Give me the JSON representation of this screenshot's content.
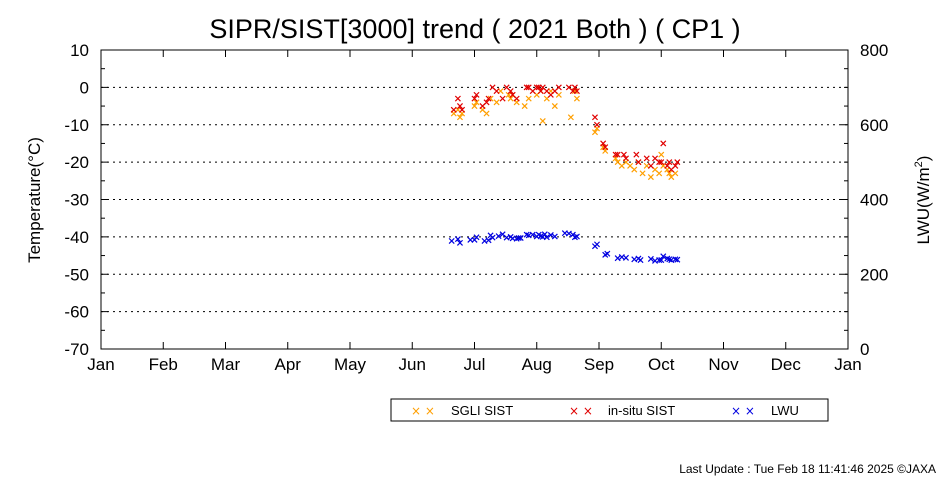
{
  "footer": "Last Update : Tue Feb 18 11:41:46 2025 ©JAXA",
  "chart_data": {
    "type": "scatter",
    "title": "SIPR/SIST[3000] trend ( 2021 Both ) ( CP1 )",
    "ylabel": "Temperature(°C)",
    "y2label_main": "LWU(W/m",
    "y2label_sup": "2",
    "y2label_end": ")",
    "xticks": [
      "Jan",
      "Feb",
      "Mar",
      "Apr",
      "May",
      "Jun",
      "Jul",
      "Aug",
      "Sep",
      "Oct",
      "Nov",
      "Dec",
      "Jan"
    ],
    "yticks": [
      "10",
      "0",
      "-10",
      "-20",
      "-30",
      "-40",
      "-50",
      "-60",
      "-70"
    ],
    "y2ticks": [
      "800",
      "600",
      "400",
      "200",
      "0"
    ],
    "ylim": [
      -70,
      10
    ],
    "y2lim": [
      0,
      800
    ],
    "xlim_months": [
      0,
      12
    ],
    "grid": "horizontal dotted",
    "legend_position": "bottom-right",
    "marker_glyph": "× ×",
    "colors": {
      "sgli": "#ff9f00",
      "insitu": "#e00000",
      "lwu": "#0000e0"
    },
    "series": [
      {
        "name": "SGLI SIST",
        "color": "#ff9f00",
        "axis": "left",
        "x": [
          "Jun 21",
          "Jun 23",
          "Jun 24",
          "Jun 25",
          "Jul 1",
          "Jul 2",
          "Jul 5",
          "Jul 7",
          "Jul 9",
          "Jul 12",
          "Jul 14",
          "Jul 18",
          "Jul 19",
          "Jul 20",
          "Jul 22",
          "Jul 26",
          "Jul 28",
          "Aug 1",
          "Aug 3",
          "Aug 4",
          "Aug 6",
          "Aug 8",
          "Aug 10",
          "Aug 12",
          "Aug 18",
          "Aug 20",
          "Aug 21",
          "Aug 30",
          "Aug 31",
          "Sep 3",
          "Sep 4",
          "Sep 9",
          "Sep 10",
          "Sep 12",
          "Sep 14",
          "Sep 16",
          "Sep 18",
          "Sep 20",
          "Sep 22",
          "Sep 24",
          "Sep 26",
          "Sep 28",
          "Sep 30",
          "Oct 1",
          "Oct 2",
          "Oct 4",
          "Oct 5",
          "Oct 6",
          "Oct 8"
        ],
        "y": [
          -7,
          -6,
          -8,
          -7,
          -5,
          -4,
          -6,
          -7,
          -3,
          -4,
          -1,
          -2,
          -3,
          -2,
          -4,
          -5,
          -3,
          -2,
          -1,
          -9,
          -3,
          -1,
          -5,
          -2,
          -8,
          -1,
          -3,
          -12,
          -11,
          -16,
          -17,
          -19,
          -20,
          -21,
          -20,
          -21,
          -22,
          -20,
          -23,
          -21,
          -24,
          -22,
          -23,
          -18,
          -21,
          -22,
          -23,
          -24,
          -23
        ]
      },
      {
        "name": "in-situ SIST",
        "color": "#e00000",
        "axis": "left",
        "x": [
          "Jun 21",
          "Jun 23",
          "Jun 24",
          "Jun 25",
          "Jul 1",
          "Jul 2",
          "Jul 5",
          "Jul 7",
          "Jul 8",
          "Jul 10",
          "Jul 12",
          "Jul 15",
          "Jul 17",
          "Jul 19",
          "Jul 20",
          "Jul 22",
          "Jul 27",
          "Jul 28",
          "Jul 30",
          "Aug 1",
          "Aug 2",
          "Aug 3",
          "Aug 4",
          "Aug 6",
          "Aug 8",
          "Aug 10",
          "Aug 12",
          "Aug 17",
          "Aug 19",
          "Aug 20",
          "Aug 21",
          "Aug 30",
          "Aug 31",
          "Sep 3",
          "Sep 4",
          "Sep 9",
          "Sep 10",
          "Sep 13",
          "Sep 14",
          "Sep 19",
          "Sep 20",
          "Sep 24",
          "Sep 26",
          "Sep 28",
          "Sep 30",
          "Oct 1",
          "Oct 2",
          "Oct 4",
          "Oct 5",
          "Oct 6",
          "Oct 8",
          "Oct 9"
        ],
        "y": [
          -6,
          -3,
          -5,
          -6,
          -3,
          -2,
          -5,
          -4,
          -3,
          0,
          -1,
          -3,
          0,
          -1,
          -2,
          -3,
          0,
          0,
          -1,
          0,
          0,
          -1,
          0,
          -1,
          -2,
          -1,
          0,
          0,
          -1,
          0,
          -1,
          -8,
          -10,
          -15,
          -16,
          -18,
          -18,
          -18,
          -19,
          -18,
          -20,
          -19,
          -21,
          -19,
          -20,
          -20,
          -15,
          -21,
          -20,
          -22,
          -21,
          -20
        ]
      },
      {
        "name": "LWU",
        "color": "#0000e0",
        "axis": "right",
        "x": [
          "Jun 20",
          "Jun 23",
          "Jun 24",
          "Jun 29",
          "Jul 1",
          "Jul 2",
          "Jul 6",
          "Jul 8",
          "Jul 9",
          "Jul 10",
          "Jul 13",
          "Jul 15",
          "Jul 17",
          "Jul 19",
          "Jul 20",
          "Jul 22",
          "Jul 23",
          "Jul 24",
          "Jul 27",
          "Jul 28",
          "Jul 30",
          "Aug 1",
          "Aug 2",
          "Aug 3",
          "Aug 4",
          "Aug 5",
          "Aug 6",
          "Aug 8",
          "Aug 10",
          "Aug 15",
          "Aug 17",
          "Aug 19",
          "Aug 20",
          "Aug 21",
          "Aug 30",
          "Aug 31",
          "Sep 4",
          "Sep 5",
          "Sep 10",
          "Sep 12",
          "Sep 14",
          "Sep 18",
          "Sep 20",
          "Sep 21",
          "Sep 26",
          "Sep 28",
          "Sep 30",
          "Oct 1",
          "Oct 2",
          "Oct 4",
          "Oct 5",
          "Oct 6",
          "Oct 8",
          "Oct 9"
        ],
        "y": [
          289,
          294,
          284,
          292,
          292,
          299,
          289,
          291,
          304,
          298,
          302,
          307,
          298,
          300,
          296,
          295,
          297,
          297,
          306,
          304,
          306,
          301,
          306,
          302,
          300,
          307,
          299,
          305,
          301,
          310,
          309,
          306,
          299,
          301,
          275,
          280,
          252,
          255,
          243,
          246,
          244,
          240,
          242,
          238,
          241,
          236,
          238,
          238,
          248,
          242,
          240,
          238,
          240,
          239
        ]
      }
    ]
  }
}
